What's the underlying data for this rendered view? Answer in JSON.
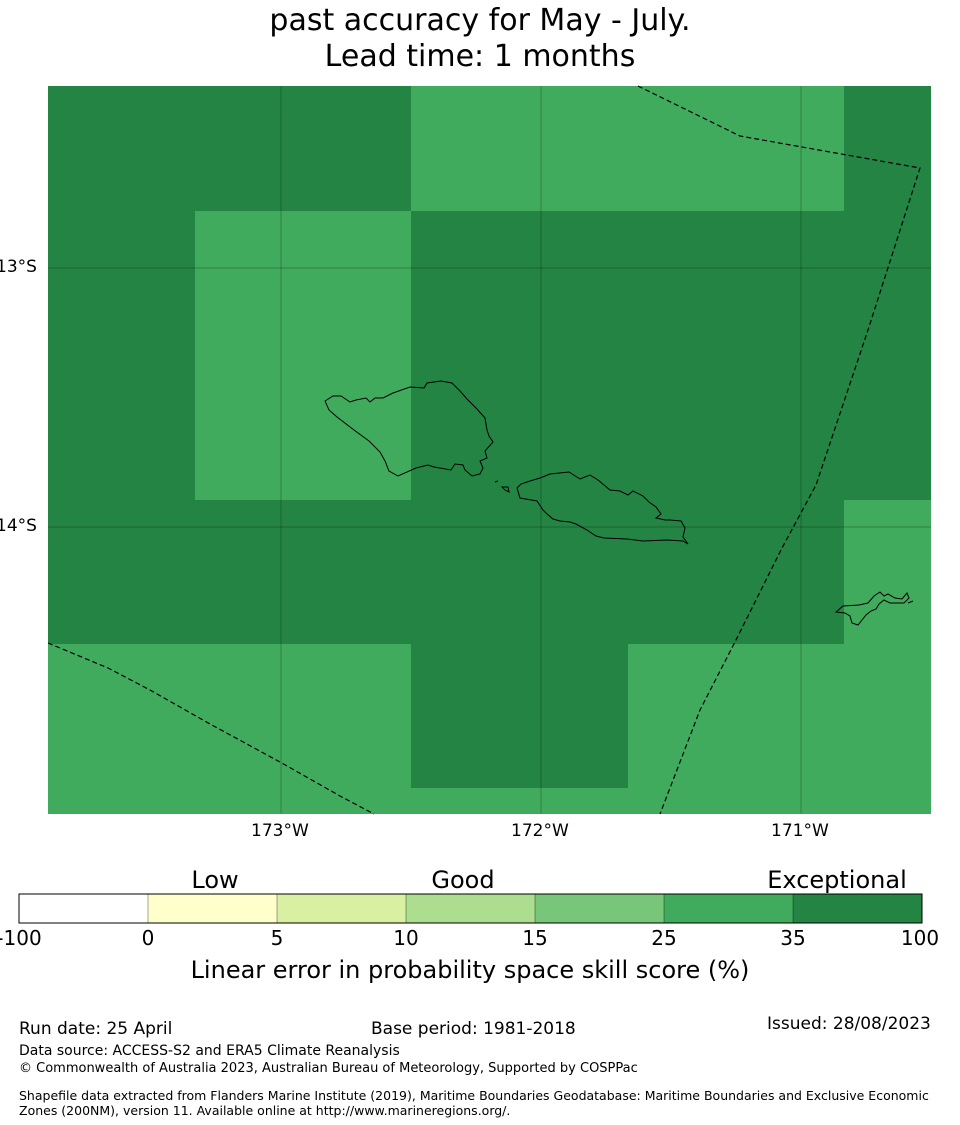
{
  "title": {
    "line1": "past accuracy for May - July.",
    "line2": "Lead time: 1 months"
  },
  "map": {
    "lat_ticks": [
      "13°S",
      "14°S"
    ],
    "lon_ticks": [
      "173°W",
      "172°W",
      "171°W"
    ],
    "grid_levels": [
      [
        "35",
        "35",
        "25",
        "25",
        "35"
      ],
      [
        "35",
        "25",
        "35",
        "35",
        "35"
      ],
      [
        "35",
        "35",
        "35",
        "35",
        "25"
      ],
      [
        "25",
        "25",
        "35",
        "25",
        "25"
      ]
    ],
    "features": [
      "Samoa (Savai'i)",
      "Samoa (Upolu)",
      "Tutuila (American Samoa)",
      "EEZ maritime boundaries"
    ]
  },
  "colorbar": {
    "categories": [
      "Low",
      "Good",
      "Exceptional"
    ],
    "bounds": [
      "-100",
      "0",
      "5",
      "10",
      "15",
      "25",
      "35",
      "100"
    ],
    "colors": [
      "#ffffff",
      "#ffffcc",
      "#d9f0a3",
      "#addd8e",
      "#78c679",
      "#41ab5d",
      "#238443"
    ],
    "label": "Linear error in probability space skill score (%)"
  },
  "footer": {
    "run_date": "Run date: 25 April",
    "base_period": "Base period: 1981-2018",
    "issued": "Issued: 28/08/2023",
    "data_source": "Data source: ACCESS-S2 and ERA5 Climate Reanalysis",
    "copyright": "© Commonwealth of Australia 2023, Australian Bureau of Meteorology, Supported by COSPPac",
    "shapefile_note": "Shapefile data extracted from Flanders Marine Institute (2019), Maritime Boundaries Geodatabase: Maritime Boundaries and Exclusive Economic Zones (200NM), version 11. Available online at http://www.marineregions.org/."
  }
}
